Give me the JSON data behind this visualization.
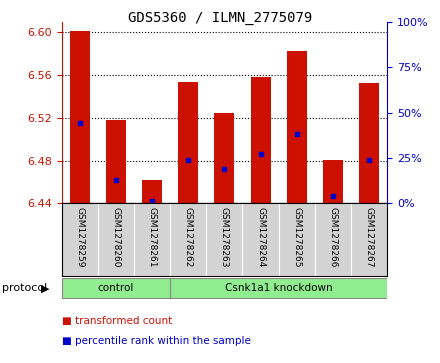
{
  "title": "GDS5360 / ILMN_2775079",
  "samples": [
    "GSM1278259",
    "GSM1278260",
    "GSM1278261",
    "GSM1278262",
    "GSM1278263",
    "GSM1278264",
    "GSM1278265",
    "GSM1278266",
    "GSM1278267"
  ],
  "bar_tops": [
    6.601,
    6.518,
    6.462,
    6.554,
    6.525,
    6.558,
    6.583,
    6.481,
    6.553
  ],
  "bar_base": 6.44,
  "blue_markers": [
    6.515,
    6.462,
    6.442,
    6.481,
    6.472,
    6.486,
    6.505,
    6.447,
    6.481
  ],
  "bar_color": "#CC1100",
  "blue_color": "#0000CC",
  "ylim_left": [
    6.44,
    6.61
  ],
  "ylim_right": [
    0,
    100
  ],
  "yticks_left": [
    6.44,
    6.48,
    6.52,
    6.56,
    6.6
  ],
  "yticks_right": [
    0,
    25,
    50,
    75,
    100
  ],
  "protocol_groups": [
    {
      "label": "control",
      "start": 0,
      "end": 3
    },
    {
      "label": "Csnk1a1 knockdown",
      "start": 3,
      "end": 9
    }
  ],
  "protocol_label": "protocol",
  "legend_items": [
    {
      "label": "transformed count",
      "color": "#CC1100"
    },
    {
      "label": "percentile rank within the sample",
      "color": "#0000CC"
    }
  ],
  "bar_width": 0.55,
  "background_color": "#ffffff",
  "plot_bg": "#ffffff",
  "grid_color": "#000000",
  "tick_color_left": "#CC1100",
  "tick_color_right": "#0000CC",
  "sample_bg": "#D3D3D3",
  "group_color": "#90EE90"
}
